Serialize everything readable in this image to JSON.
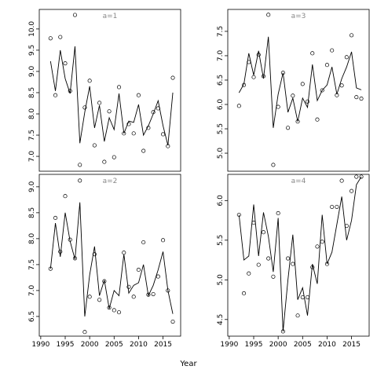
{
  "chart_data": [
    {
      "type": "line",
      "title": "a=1",
      "x": [
        1992,
        1993,
        1994,
        1995,
        1996,
        1997,
        1998,
        1999,
        2000,
        2001,
        2002,
        2003,
        2004,
        2005,
        2006,
        2007,
        2008,
        2009,
        2010,
        2011,
        2012,
        2013,
        2014,
        2015,
        2016,
        2017
      ],
      "values": [
        9.24,
        8.54,
        9.5,
        8.83,
        8.48,
        9.59,
        7.31,
        8.04,
        8.65,
        7.67,
        8.2,
        7.35,
        7.91,
        7.63,
        8.48,
        7.54,
        7.83,
        7.8,
        8.22,
        7.5,
        7.72,
        8.0,
        8.31,
        7.72,
        7.26,
        8.5
      ],
      "observed": [
        9.78,
        8.44,
        9.81,
        9.19,
        8.54,
        10.33,
        6.8,
        8.15,
        8.78,
        7.26,
        8.26,
        6.87,
        8.06,
        6.98,
        8.63,
        7.54,
        7.76,
        7.54,
        8.44,
        7.13,
        7.67,
        8.04,
        8.13,
        7.52,
        7.24,
        8.85
      ],
      "xlim": [
        1989.7,
        2018.6
      ],
      "ylim": [
        6.65,
        10.46
      ],
      "yticks": [
        {
          "value": 7,
          "label": "7.0"
        },
        7.5,
        {
          "value": 8,
          "label": "8.0"
        },
        8.5,
        {
          "value": 9,
          "label": "9.0"
        },
        9.5,
        {
          "value": 10,
          "label": "10.0"
        }
      ]
    },
    {
      "type": "line",
      "title": "a=3",
      "x": [
        1992,
        1993,
        1994,
        1995,
        1996,
        1997,
        1998,
        1999,
        2000,
        2001,
        2002,
        2003,
        2004,
        2005,
        2006,
        2007,
        2008,
        2009,
        2010,
        2011,
        2012,
        2013,
        2014,
        2015,
        2016,
        2017
      ],
      "values": [
        6.24,
        6.42,
        7.05,
        6.6,
        7.1,
        6.53,
        7.39,
        5.52,
        6.21,
        6.65,
        5.84,
        6.13,
        5.65,
        6.13,
        5.94,
        6.82,
        6.08,
        6.29,
        6.4,
        6.77,
        6.21,
        6.53,
        6.77,
        7.08,
        6.34,
        6.3
      ],
      "observed": [
        5.97,
        6.4,
        6.87,
        6.56,
        7.02,
        6.58,
        7.84,
        4.76,
        5.95,
        6.65,
        5.52,
        6.18,
        5.65,
        6.42,
        6.06,
        7.05,
        5.69,
        6.29,
        6.81,
        7.11,
        6.19,
        6.39,
        6.97,
        7.42,
        6.15,
        6.12
      ],
      "xlim": [
        1989.7,
        2018.6
      ],
      "ylim": [
        4.63,
        7.95
      ],
      "yticks": [
        {
          "value": 5,
          "label": "5.0"
        },
        5.5,
        {
          "value": 6,
          "label": "6.0"
        },
        6.5,
        {
          "value": 7,
          "label": "7.0"
        },
        7.5
      ]
    },
    {
      "type": "line",
      "title": "a=2",
      "x": [
        1992,
        1993,
        1994,
        1995,
        1996,
        1997,
        1998,
        1999,
        2000,
        2001,
        2002,
        2003,
        2004,
        2005,
        2006,
        2007,
        2008,
        2009,
        2010,
        2011,
        2012,
        2013,
        2014,
        2015,
        2016,
        2017
      ],
      "values": [
        7.42,
        8.3,
        7.65,
        8.5,
        7.95,
        7.6,
        8.7,
        6.5,
        7.3,
        7.85,
        6.9,
        7.2,
        6.65,
        7.0,
        6.9,
        7.7,
        6.95,
        7.1,
        7.15,
        7.5,
        6.9,
        7.1,
        7.4,
        7.75,
        7.0,
        6.55
      ],
      "observed": [
        7.42,
        8.4,
        7.75,
        8.82,
        7.98,
        7.62,
        9.12,
        6.2,
        6.88,
        7.7,
        6.82,
        7.18,
        6.67,
        6.62,
        6.58,
        7.73,
        7.07,
        6.88,
        7.4,
        7.93,
        6.92,
        6.93,
        7.27,
        7.97,
        7.0,
        6.4
      ],
      "xlim": [
        1989.7,
        2018.6
      ],
      "ylim": [
        6.12,
        9.24
      ],
      "xticks": [
        1990,
        1995,
        2000,
        2005,
        2010,
        2015
      ],
      "yticks": [
        6.5,
        {
          "value": 7,
          "label": "7.0"
        },
        7.5,
        {
          "value": 8,
          "label": "8.0"
        },
        8.5,
        {
          "value": 9,
          "label": "9.0"
        }
      ]
    },
    {
      "type": "line",
      "title": "a=4",
      "x": [
        1992,
        1993,
        1994,
        1995,
        1996,
        1997,
        1998,
        1999,
        2000,
        2001,
        2002,
        2003,
        2004,
        2005,
        2006,
        2007,
        2008,
        2009,
        2010,
        2011,
        2012,
        2013,
        2014,
        2015,
        2016,
        2017
      ],
      "values": [
        5.82,
        5.25,
        5.3,
        5.95,
        5.3,
        5.85,
        5.55,
        5.1,
        5.78,
        4.35,
        5.0,
        5.57,
        4.75,
        4.9,
        4.55,
        5.2,
        4.95,
        5.82,
        5.2,
        5.35,
        5.7,
        6.05,
        5.5,
        5.75,
        6.2,
        6.3
      ],
      "observed": [
        5.82,
        4.83,
        5.08,
        5.72,
        5.19,
        5.6,
        5.27,
        5.04,
        5.84,
        4.35,
        5.27,
        5.2,
        4.55,
        4.78,
        4.78,
        5.16,
        5.42,
        5.48,
        5.2,
        5.92,
        5.92,
        6.25,
        5.68,
        6.12,
        6.3,
        6.3
      ],
      "xlim": [
        1989.7,
        2018.6
      ],
      "ylim": [
        4.29,
        6.33
      ],
      "xticks": [
        1990,
        1995,
        2000,
        2005,
        2010,
        2015
      ],
      "yticks": [
        4.5,
        {
          "value": 5,
          "label": "5.0"
        },
        5.5,
        {
          "value": 6,
          "label": "6.0"
        }
      ]
    }
  ],
  "x_label": "Year"
}
